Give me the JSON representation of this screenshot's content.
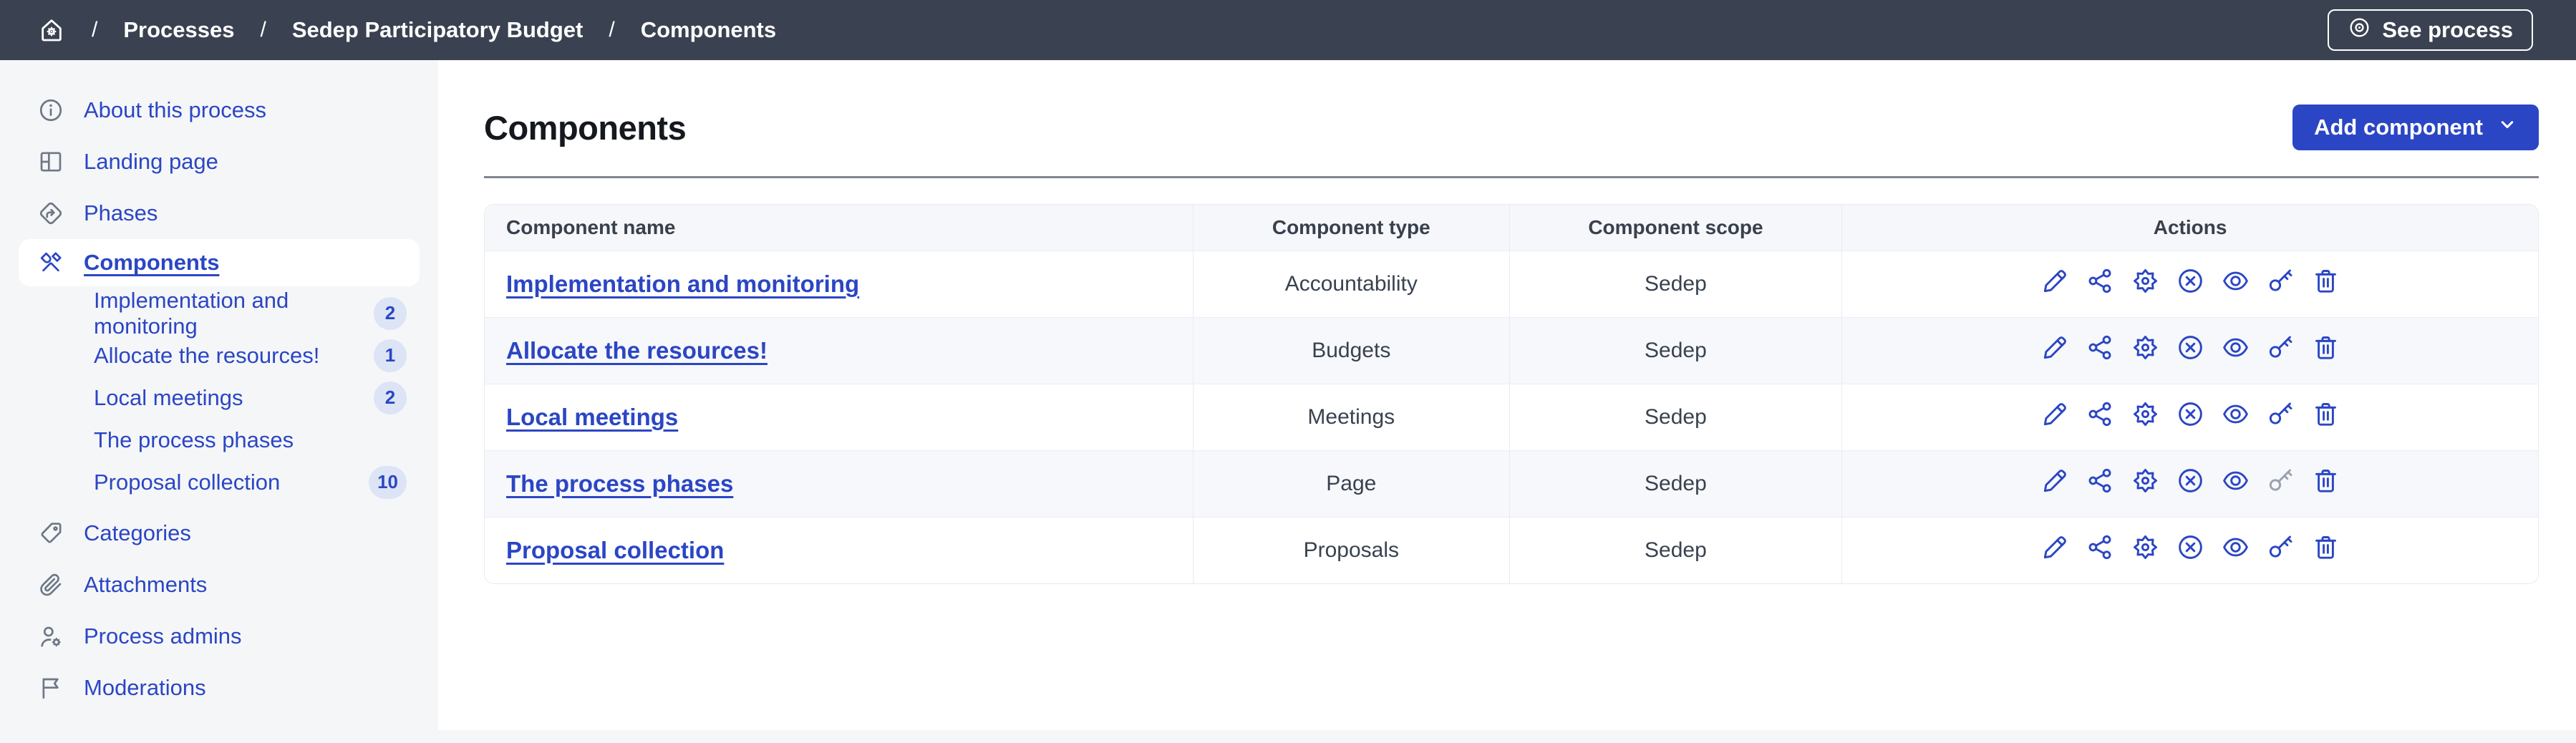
{
  "topbar": {
    "separator": "/",
    "home_icon": "home-gear-icon",
    "breadcrumb": [
      {
        "label": "Processes"
      },
      {
        "label": "Sedep Participatory Budget"
      },
      {
        "label": "Components"
      }
    ],
    "see_process_label": "See process",
    "see_process_icon": "eye-circle-icon"
  },
  "sidebar": {
    "items": [
      {
        "id": "about",
        "icon": "info-icon",
        "label": "About this process"
      },
      {
        "id": "landing",
        "icon": "layout-icon",
        "label": "Landing page"
      },
      {
        "id": "phases",
        "icon": "phases-icon",
        "label": "Phases"
      },
      {
        "id": "components",
        "icon": "tools-icon",
        "label": "Components",
        "active": true,
        "children": [
          {
            "label": "Implementation and monitoring",
            "badge": "2"
          },
          {
            "label": "Allocate the resources!",
            "badge": "1"
          },
          {
            "label": "Local meetings",
            "badge": "2"
          },
          {
            "label": "The process phases",
            "badge": ""
          },
          {
            "label": "Proposal collection",
            "badge": "10"
          }
        ]
      },
      {
        "id": "categories",
        "icon": "tag-icon",
        "label": "Categories"
      },
      {
        "id": "attachments",
        "icon": "paperclip-icon",
        "label": "Attachments"
      },
      {
        "id": "admins",
        "icon": "user-gear-icon",
        "label": "Process admins"
      },
      {
        "id": "moderations",
        "icon": "flag-icon",
        "label": "Moderations"
      }
    ]
  },
  "main": {
    "title": "Components",
    "add_component_label": "Add component",
    "add_component_icon": "chevron-down-icon",
    "table": {
      "columns": [
        "Component name",
        "Component type",
        "Component scope",
        "Actions"
      ],
      "actions": [
        {
          "id": "edit",
          "icon": "pencil-icon"
        },
        {
          "id": "share",
          "icon": "share-icon"
        },
        {
          "id": "configure",
          "icon": "gear-icon"
        },
        {
          "id": "unpublish",
          "icon": "circle-x-icon"
        },
        {
          "id": "preview",
          "icon": "eye-icon"
        },
        {
          "id": "permissions",
          "icon": "key-icon"
        },
        {
          "id": "delete",
          "icon": "trash-icon"
        }
      ],
      "rows": [
        {
          "name": "Implementation and monitoring",
          "type": "Accountability",
          "scope": "Sedep",
          "disabled_actions": []
        },
        {
          "name": "Allocate the resources!",
          "type": "Budgets",
          "scope": "Sedep",
          "disabled_actions": []
        },
        {
          "name": "Local meetings",
          "type": "Meetings",
          "scope": "Sedep",
          "disabled_actions": []
        },
        {
          "name": "The process phases",
          "type": "Page",
          "scope": "Sedep",
          "disabled_actions": [
            "permissions"
          ]
        },
        {
          "name": "Proposal collection",
          "type": "Proposals",
          "scope": "Sedep",
          "disabled_actions": []
        }
      ]
    }
  },
  "colors": {
    "accent_blue": "#2B46C4",
    "topbar_bg": "#3A4151",
    "sidebar_bg": "#F5F6F8",
    "badge_bg": "#DCE4F6",
    "table_header_bg": "#F5F7FB",
    "zebra_row_bg": "#F7F8FC",
    "disabled_icon": "#99A1AC"
  }
}
